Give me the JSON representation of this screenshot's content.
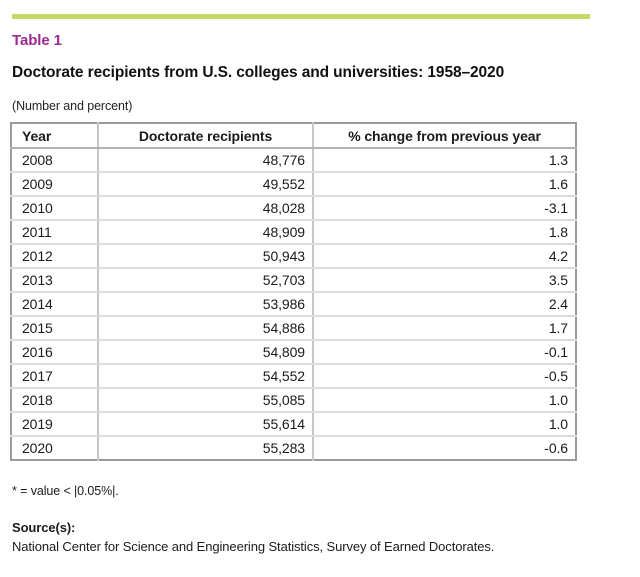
{
  "accent": {
    "bar_color": "#c3da64",
    "label_color": "#9b2a90"
  },
  "header": {
    "table_label": "Table 1",
    "title": "Doctorate recipients from U.S. colleges and universities: 1958–2020",
    "subtitle": "(Number and percent)"
  },
  "chart_data": {
    "type": "table",
    "columns": [
      "Year",
      "Doctorate recipients",
      "% change from previous year"
    ],
    "rows": [
      [
        "2008",
        "48,776",
        "1.3"
      ],
      [
        "2009",
        "49,552",
        "1.6"
      ],
      [
        "2010",
        "48,028",
        "-3.1"
      ],
      [
        "2011",
        "48,909",
        "1.8"
      ],
      [
        "2012",
        "50,943",
        "4.2"
      ],
      [
        "2013",
        "52,703",
        "3.5"
      ],
      [
        "2014",
        "53,986",
        "2.4"
      ],
      [
        "2015",
        "54,886",
        "1.7"
      ],
      [
        "2016",
        "54,809",
        "-0.1"
      ],
      [
        "2017",
        "54,552",
        "-0.5"
      ],
      [
        "2018",
        "55,085",
        "1.0"
      ],
      [
        "2019",
        "55,614",
        "1.0"
      ],
      [
        "2020",
        "55,283",
        "-0.6"
      ]
    ]
  },
  "footnote": "* = value < |0.05%|.",
  "source": {
    "label": "Source(s):",
    "text": "National Center for Science and Engineering Statistics, Survey of Earned Doctorates."
  }
}
